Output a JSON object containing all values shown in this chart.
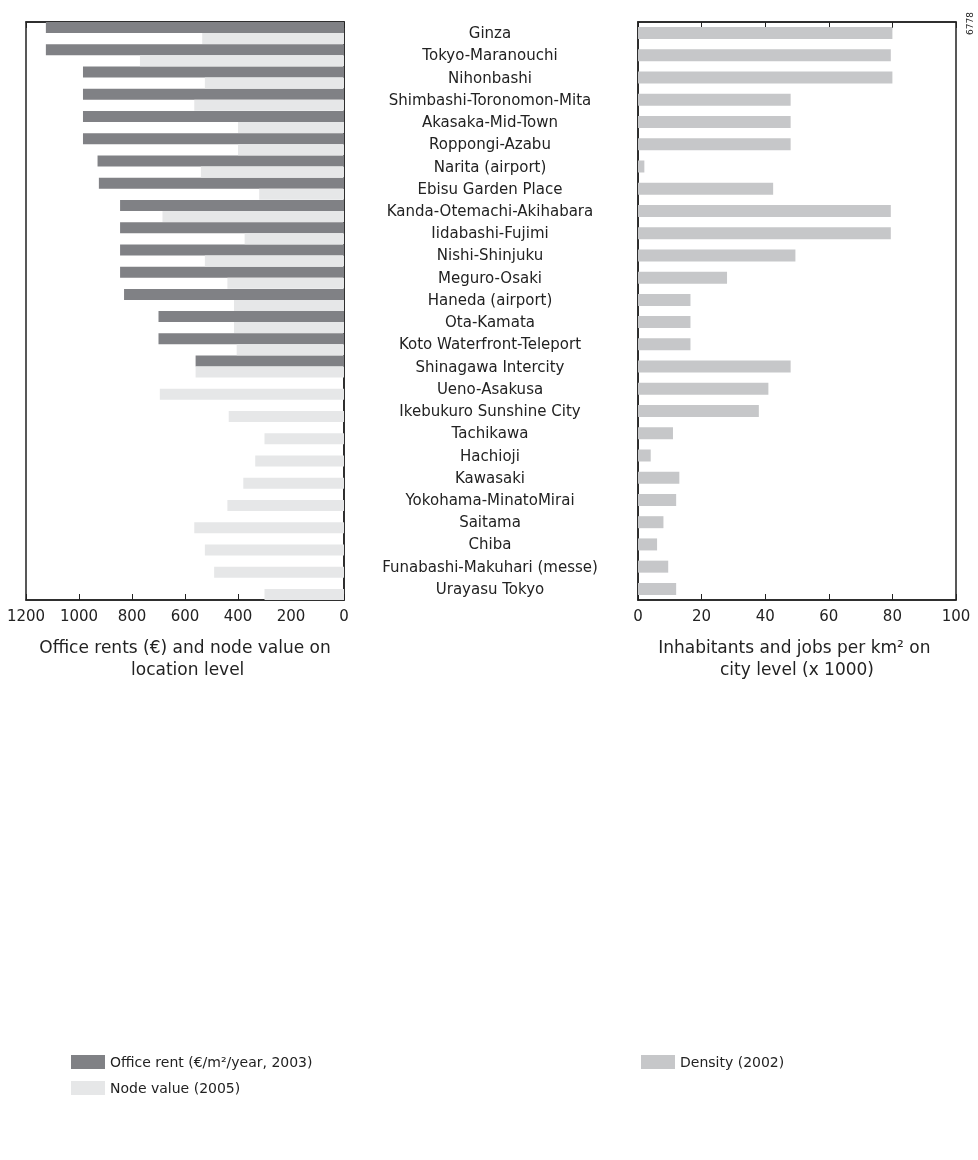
{
  "chart_data": [
    {
      "type": "bar",
      "orientation": "horizontal",
      "xlabel": "Office rents (€) and node value on location level",
      "legend": "bottom left",
      "categories": [
        "Ginza",
        "Tokyo-Maranouchi",
        "Nihonbashi",
        "Shimbashi-Toronomon-Mita",
        "Akasaka-Mid-Town",
        "Roppongi-Azabu",
        "Narita (airport)",
        "Ebisu Garden Place",
        "Kanda-Otemachi-Akihabara",
        "Iidabashi-Fujimi",
        "Nishi-Shinjuku",
        "Meguro-Osaki",
        "Haneda (airport)",
        "Ota-Kamata",
        "Koto Waterfront-Teleport",
        "Shinagawa Intercity",
        "Ueno-Asakusa",
        "Ikebukuro Sunshine City",
        "Tachikawa",
        "Hachioji",
        "Kawasaki",
        "Yokohama-MinatoMirai",
        "Saitama",
        "Chiba",
        "Funabashi-Makuhari (messe)",
        "Urayasu Tokyo"
      ],
      "series": [
        {
          "name": "Office rent (€/m²/year, 2003)",
          "color": "#808185",
          "values": [
            1125,
            1125,
            985,
            985,
            985,
            985,
            930,
            925,
            845,
            845,
            845,
            845,
            830,
            700,
            700,
            560,
            null,
            null,
            null,
            null,
            null,
            null,
            null,
            null,
            null,
            null
          ]
        },
        {
          "name": "Node value (2005)",
          "color": "#e6e7e8",
          "values": [
            535,
            770,
            525,
            565,
            400,
            400,
            540,
            320,
            685,
            375,
            525,
            440,
            415,
            415,
            405,
            560,
            695,
            435,
            300,
            335,
            380,
            440,
            565,
            525,
            490,
            300
          ]
        }
      ],
      "xlim": [
        1200,
        0
      ],
      "xticks": [
        1200,
        1000,
        800,
        600,
        400,
        200,
        0
      ]
    },
    {
      "type": "bar",
      "orientation": "horizontal",
      "xlabel": "Inhabitants and jobs per km² on city level (x 1000)",
      "legend": "bottom left",
      "tick_labels": "x",
      "categories": [
        null,
        null,
        null,
        null,
        null,
        null,
        null,
        null,
        null,
        null,
        null,
        null,
        null,
        null,
        null,
        null,
        null,
        null,
        null,
        null,
        null,
        null,
        null,
        null,
        null,
        null
      ],
      "series": [
        {
          "name": "Density (2002)",
          "color": "#c6c7c9",
          "values": [
            80,
            79.5,
            80,
            48,
            48,
            48,
            2,
            42.5,
            79.5,
            79.5,
            49.5,
            28,
            16.5,
            16.5,
            16.5,
            48,
            41,
            38,
            11,
            4,
            13,
            12,
            8,
            6,
            9.5,
            12
          ]
        }
      ],
      "xlim": [
        0,
        100
      ],
      "xticks": [
        0,
        20,
        40,
        60,
        80,
        100
      ],
      "annotations": [
        "6778"
      ]
    }
  ]
}
